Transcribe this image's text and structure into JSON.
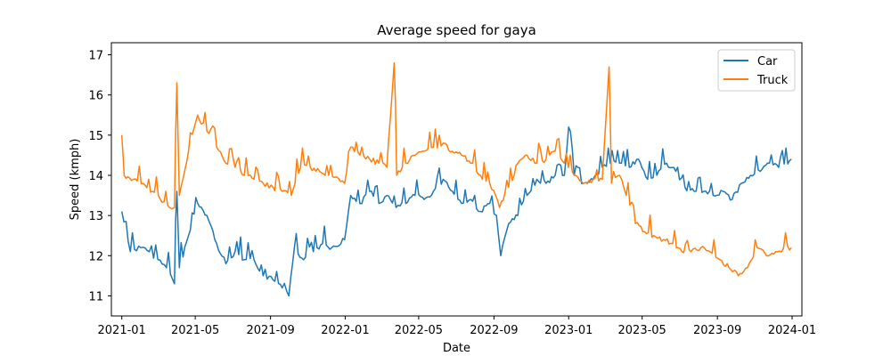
{
  "chart_data": {
    "type": "line",
    "title": "Average speed for gaya",
    "xlabel": "Date",
    "ylabel": "Speed (kmph)",
    "x_range": [
      "2020-12-15",
      "2024-01-17"
    ],
    "ylim": [
      10.5,
      17.3
    ],
    "x_ticks": [
      "2021-01",
      "2021-05",
      "2021-09",
      "2022-01",
      "2022-05",
      "2022-09",
      "2023-01",
      "2023-05",
      "2023-09",
      "2024-01"
    ],
    "y_ticks": [
      11,
      12,
      13,
      14,
      15,
      16,
      17
    ],
    "grid": false,
    "legend_position": "top-right",
    "series": [
      {
        "name": "Car",
        "color": "#1f77b4",
        "points": [
          [
            "2021-01-01",
            13.1
          ],
          [
            "2021-01-15",
            12.1
          ],
          [
            "2021-02-01",
            12.2
          ],
          [
            "2021-02-15",
            12.1
          ],
          [
            "2021-03-01",
            11.9
          ],
          [
            "2021-03-15",
            11.7
          ],
          [
            "2021-03-28",
            11.3
          ],
          [
            "2021-04-01",
            13.6
          ],
          [
            "2021-04-05",
            11.7
          ],
          [
            "2021-04-20",
            12.5
          ],
          [
            "2021-05-05",
            13.3
          ],
          [
            "2021-05-20",
            13.0
          ],
          [
            "2021-06-05",
            12.3
          ],
          [
            "2021-06-20",
            11.8
          ],
          [
            "2021-07-05",
            12.1
          ],
          [
            "2021-07-20",
            11.9
          ],
          [
            "2021-08-05",
            11.9
          ],
          [
            "2021-08-20",
            11.5
          ],
          [
            "2021-09-05",
            11.4
          ],
          [
            "2021-09-20",
            11.2
          ],
          [
            "2021-10-01",
            11.0
          ],
          [
            "2021-10-10",
            12.2
          ],
          [
            "2021-10-25",
            11.9
          ],
          [
            "2021-11-10",
            12.1
          ],
          [
            "2021-11-25",
            12.3
          ],
          [
            "2021-12-10",
            12.2
          ],
          [
            "2021-12-31",
            12.4
          ],
          [
            "2022-01-10",
            13.5
          ],
          [
            "2022-01-25",
            13.3
          ],
          [
            "2022-02-10",
            13.6
          ],
          [
            "2022-02-25",
            13.3
          ],
          [
            "2022-03-10",
            13.5
          ],
          [
            "2022-03-25",
            13.2
          ],
          [
            "2022-04-10",
            13.3
          ],
          [
            "2022-04-25",
            13.5
          ],
          [
            "2022-05-10",
            13.4
          ],
          [
            "2022-05-25",
            13.6
          ],
          [
            "2022-06-10",
            13.9
          ],
          [
            "2022-06-25",
            13.6
          ],
          [
            "2022-07-10",
            13.3
          ],
          [
            "2022-07-25",
            13.4
          ],
          [
            "2022-08-10",
            13.1
          ],
          [
            "2022-08-25",
            13.3
          ],
          [
            "2022-09-05",
            13.0
          ],
          [
            "2022-09-12",
            12.0
          ],
          [
            "2022-09-25",
            12.8
          ],
          [
            "2022-10-10",
            13.0
          ],
          [
            "2022-10-25",
            13.5
          ],
          [
            "2022-11-10",
            13.9
          ],
          [
            "2022-11-25",
            13.8
          ],
          [
            "2022-12-10",
            14.0
          ],
          [
            "2022-12-25",
            14.0
          ],
          [
            "2023-01-01",
            15.2
          ],
          [
            "2023-01-10",
            14.0
          ],
          [
            "2023-01-25",
            13.8
          ],
          [
            "2023-02-10",
            13.9
          ],
          [
            "2023-02-25",
            14.2
          ],
          [
            "2023-03-10",
            14.3
          ],
          [
            "2023-03-25",
            14.3
          ],
          [
            "2023-04-10",
            14.2
          ],
          [
            "2023-04-25",
            14.4
          ],
          [
            "2023-05-10",
            13.9
          ],
          [
            "2023-05-25",
            14.0
          ],
          [
            "2023-06-10",
            14.3
          ],
          [
            "2023-06-25",
            14.1
          ],
          [
            "2023-07-10",
            13.7
          ],
          [
            "2023-07-25",
            13.6
          ],
          [
            "2023-08-10",
            13.6
          ],
          [
            "2023-08-25",
            13.5
          ],
          [
            "2023-09-10",
            13.6
          ],
          [
            "2023-09-25",
            13.4
          ],
          [
            "2023-10-10",
            13.8
          ],
          [
            "2023-10-25",
            14.0
          ],
          [
            "2023-11-10",
            14.1
          ],
          [
            "2023-11-25",
            14.3
          ],
          [
            "2023-12-10",
            14.2
          ],
          [
            "2023-12-31",
            14.4
          ]
        ]
      },
      {
        "name": "Truck",
        "color": "#ff7f0e",
        "points": [
          [
            "2021-01-01",
            15.0
          ],
          [
            "2021-01-05",
            14.0
          ],
          [
            "2021-01-20",
            13.9
          ],
          [
            "2021-02-05",
            13.8
          ],
          [
            "2021-02-20",
            13.6
          ],
          [
            "2021-03-05",
            13.4
          ],
          [
            "2021-03-20",
            13.2
          ],
          [
            "2021-03-28",
            13.2
          ],
          [
            "2021-04-01",
            16.3
          ],
          [
            "2021-04-05",
            13.5
          ],
          [
            "2021-04-20",
            14.6
          ],
          [
            "2021-05-05",
            15.5
          ],
          [
            "2021-05-20",
            15.1
          ],
          [
            "2021-06-05",
            14.7
          ],
          [
            "2021-06-20",
            14.3
          ],
          [
            "2021-07-05",
            14.2
          ],
          [
            "2021-07-20",
            14.0
          ],
          [
            "2021-08-05",
            13.9
          ],
          [
            "2021-08-20",
            13.8
          ],
          [
            "2021-09-05",
            13.7
          ],
          [
            "2021-09-20",
            13.6
          ],
          [
            "2021-10-05",
            13.5
          ],
          [
            "2021-10-20",
            14.2
          ],
          [
            "2021-11-05",
            14.2
          ],
          [
            "2021-11-20",
            14.1
          ],
          [
            "2021-12-05",
            14.0
          ],
          [
            "2021-12-31",
            13.8
          ],
          [
            "2022-01-10",
            14.7
          ],
          [
            "2022-01-25",
            14.5
          ],
          [
            "2022-02-10",
            14.4
          ],
          [
            "2022-02-25",
            14.3
          ],
          [
            "2022-03-10",
            14.2
          ],
          [
            "2022-03-22",
            16.8
          ],
          [
            "2022-03-26",
            14.0
          ],
          [
            "2022-04-10",
            14.3
          ],
          [
            "2022-04-25",
            14.5
          ],
          [
            "2022-05-10",
            14.6
          ],
          [
            "2022-05-25",
            14.7
          ],
          [
            "2022-06-10",
            14.8
          ],
          [
            "2022-06-25",
            14.6
          ],
          [
            "2022-07-10",
            14.5
          ],
          [
            "2022-07-25",
            14.3
          ],
          [
            "2022-08-10",
            14.0
          ],
          [
            "2022-08-25",
            13.8
          ],
          [
            "2022-09-10",
            13.2
          ],
          [
            "2022-09-25",
            13.7
          ],
          [
            "2022-10-10",
            14.3
          ],
          [
            "2022-10-25",
            14.5
          ],
          [
            "2022-11-10",
            14.3
          ],
          [
            "2022-11-25",
            14.4
          ],
          [
            "2022-12-10",
            14.6
          ],
          [
            "2022-12-25",
            14.3
          ],
          [
            "2023-01-10",
            14.0
          ],
          [
            "2023-01-25",
            13.8
          ],
          [
            "2023-02-10",
            13.9
          ],
          [
            "2023-02-25",
            13.9
          ],
          [
            "2023-03-08",
            16.7
          ],
          [
            "2023-03-12",
            13.8
          ],
          [
            "2023-03-25",
            14.0
          ],
          [
            "2023-04-05",
            13.5
          ],
          [
            "2023-04-20",
            12.8
          ],
          [
            "2023-05-05",
            12.6
          ],
          [
            "2023-05-20",
            12.5
          ],
          [
            "2023-06-05",
            12.4
          ],
          [
            "2023-06-20",
            12.3
          ],
          [
            "2023-07-05",
            12.1
          ],
          [
            "2023-07-20",
            12.1
          ],
          [
            "2023-08-05",
            12.2
          ],
          [
            "2023-08-20",
            12.1
          ],
          [
            "2023-09-05",
            11.9
          ],
          [
            "2023-09-20",
            11.7
          ],
          [
            "2023-10-05",
            11.5
          ],
          [
            "2023-10-20",
            11.7
          ],
          [
            "2023-11-05",
            12.2
          ],
          [
            "2023-11-20",
            12.0
          ],
          [
            "2023-12-05",
            12.1
          ],
          [
            "2023-12-31",
            12.2
          ]
        ]
      }
    ]
  }
}
